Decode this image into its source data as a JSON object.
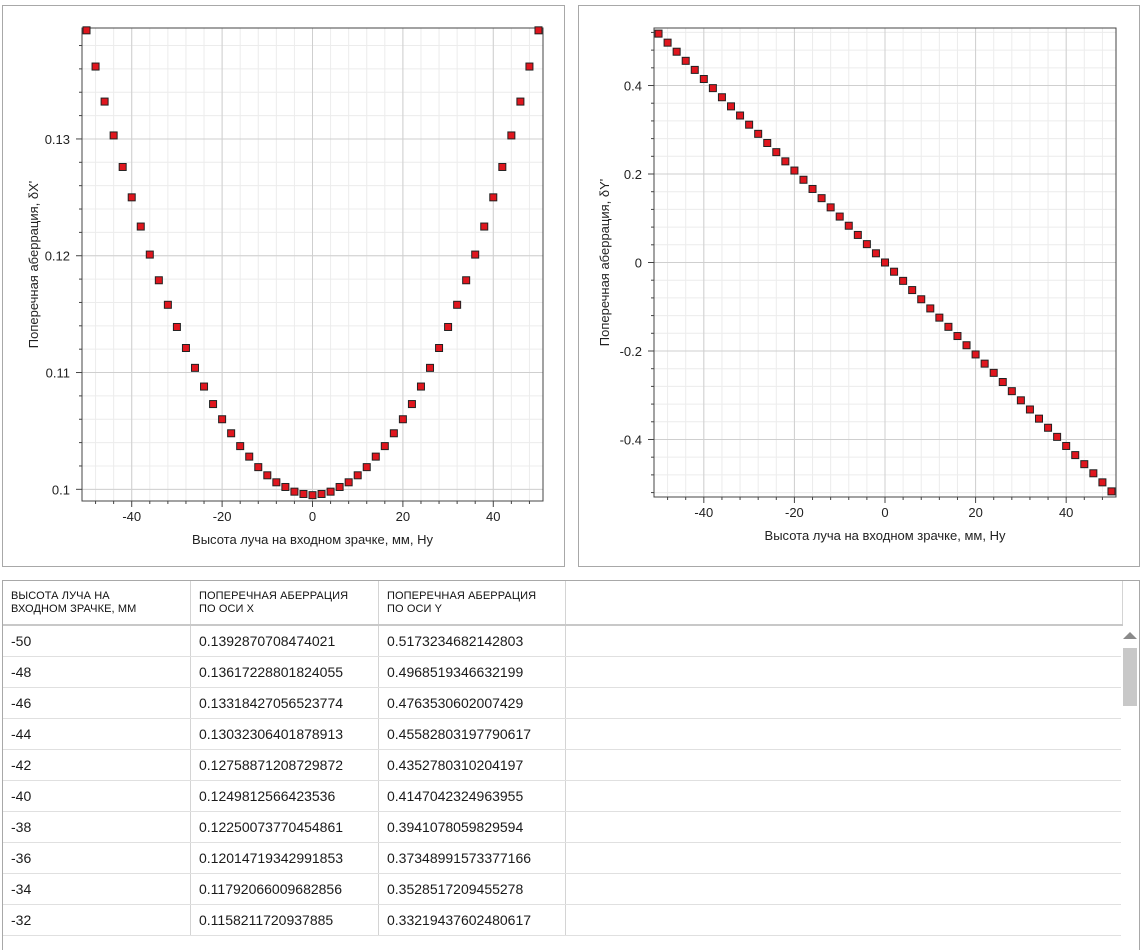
{
  "chart_data": [
    {
      "type": "scatter",
      "xlabel": "Высота луча на входном зрачке, мм, Hy",
      "ylabel": "Поперечная аберрация, δX'",
      "xlim": [
        -51,
        51
      ],
      "ylim": [
        0.099,
        0.1395
      ],
      "x_ticks": [
        -40,
        -20,
        0,
        20,
        40
      ],
      "y_ticks": [
        0.1,
        0.11,
        0.12,
        0.13
      ],
      "x_tick_labels": [
        "-40",
        "-20",
        "0",
        "20",
        "40"
      ],
      "y_tick_labels": [
        "0.1",
        "0.11",
        "0.12",
        "0.13"
      ],
      "grid": true,
      "marker_color": "#e0161e",
      "series": [
        {
          "x": [
            -50,
            -48,
            -46,
            -44,
            -42,
            -40,
            -38,
            -36,
            -34,
            -32,
            -30,
            -28,
            -26,
            -24,
            -22,
            -20,
            -18,
            -16,
            -14,
            -12,
            -10,
            -8,
            -6,
            -4,
            -2,
            0,
            2,
            4,
            6,
            8,
            10,
            12,
            14,
            16,
            18,
            20,
            22,
            24,
            26,
            28,
            30,
            32,
            34,
            36,
            38,
            40,
            42,
            44,
            46,
            48,
            50
          ],
          "y": [
            0.1393,
            0.1362,
            0.1332,
            0.1303,
            0.1276,
            0.125,
            0.1225,
            0.1201,
            0.1179,
            0.1158,
            0.1139,
            0.1121,
            0.1104,
            0.1088,
            0.1073,
            0.106,
            0.1048,
            0.1037,
            0.1028,
            0.1019,
            0.1012,
            0.1006,
            0.1002,
            0.0998,
            0.0996,
            0.0995,
            0.0996,
            0.0998,
            0.1002,
            0.1006,
            0.1012,
            0.1019,
            0.1028,
            0.1037,
            0.1048,
            0.106,
            0.1073,
            0.1088,
            0.1104,
            0.1121,
            0.1139,
            0.1158,
            0.1179,
            0.1201,
            0.1225,
            0.125,
            0.1276,
            0.1303,
            0.1332,
            0.1362,
            0.1393
          ]
        }
      ]
    },
    {
      "type": "scatter",
      "xlabel": "Высота луча на входном зрачке, мм, Hy",
      "ylabel": "Поперечная аберрация, δY'",
      "xlim": [
        -51,
        51
      ],
      "ylim": [
        -0.53,
        0.53
      ],
      "x_ticks": [
        -40,
        -20,
        0,
        20,
        40
      ],
      "y_ticks": [
        -0.4,
        -0.2,
        0,
        0.2,
        0.4
      ],
      "x_tick_labels": [
        "-40",
        "-20",
        "0",
        "20",
        "40"
      ],
      "y_tick_labels": [
        "-0.4",
        "-0.2",
        "0",
        "0.2",
        "0.4"
      ],
      "grid": true,
      "marker_color": "#e0161e",
      "series": [
        {
          "x": [
            -50,
            -48,
            -46,
            -44,
            -42,
            -40,
            -38,
            -36,
            -34,
            -32,
            -30,
            -28,
            -26,
            -24,
            -22,
            -20,
            -18,
            -16,
            -14,
            -12,
            -10,
            -8,
            -6,
            -4,
            -2,
            0,
            2,
            4,
            6,
            8,
            10,
            12,
            14,
            16,
            18,
            20,
            22,
            24,
            26,
            28,
            30,
            32,
            34,
            36,
            38,
            40,
            42,
            44,
            46,
            48,
            50
          ],
          "y": [
            0.5173,
            0.4969,
            0.4764,
            0.4558,
            0.4353,
            0.4147,
            0.3941,
            0.3735,
            0.3529,
            0.3322,
            0.3115,
            0.2908,
            0.2701,
            0.2494,
            0.2286,
            0.2078,
            0.187,
            0.1662,
            0.1454,
            0.1246,
            0.1038,
            0.0831,
            0.0623,
            0.0415,
            0.0208,
            0.0,
            -0.0208,
            -0.0415,
            -0.0623,
            -0.0831,
            -0.1038,
            -0.1246,
            -0.1454,
            -0.1662,
            -0.187,
            -0.2078,
            -0.2286,
            -0.2494,
            -0.2701,
            -0.2908,
            -0.3115,
            -0.3322,
            -0.3529,
            -0.3735,
            -0.3941,
            -0.4147,
            -0.4353,
            -0.4558,
            -0.4764,
            -0.4969,
            -0.5173
          ]
        }
      ]
    }
  ],
  "table": {
    "headers": [
      [
        "ВЫСОТА ЛУЧА НА",
        "ВХОДНОМ ЗРАЧКЕ, ММ"
      ],
      [
        "ПОПЕРЕЧНАЯ АБЕРРАЦИЯ",
        "ПО ОСИ X"
      ],
      [
        "ПОПЕРЕЧНАЯ АБЕРРАЦИЯ",
        "ПО ОСИ Y"
      ]
    ],
    "rows": [
      [
        "-50",
        "0.1392870708474021",
        "0.5173234682142803"
      ],
      [
        "-48",
        "0.13617228801824055",
        "0.4968519346632199"
      ],
      [
        "-46",
        "0.13318427056523774",
        "0.4763530602007429"
      ],
      [
        "-44",
        "0.13032306401878913",
        "0.45582803197790617"
      ],
      [
        "-42",
        "0.12758871208729872",
        "0.4352780310204197"
      ],
      [
        "-40",
        "0.1249812566423536",
        "0.4147042324963955"
      ],
      [
        "-38",
        "0.12250073770454861",
        "0.3941078059829594"
      ],
      [
        "-36",
        "0.12014719342991853",
        "0.37348991573377166"
      ],
      [
        "-34",
        "0.11792066009682856",
        "0.3528517209455278"
      ],
      [
        "-32",
        "0.1158211720937885",
        "0.33219437602480617"
      ]
    ]
  }
}
